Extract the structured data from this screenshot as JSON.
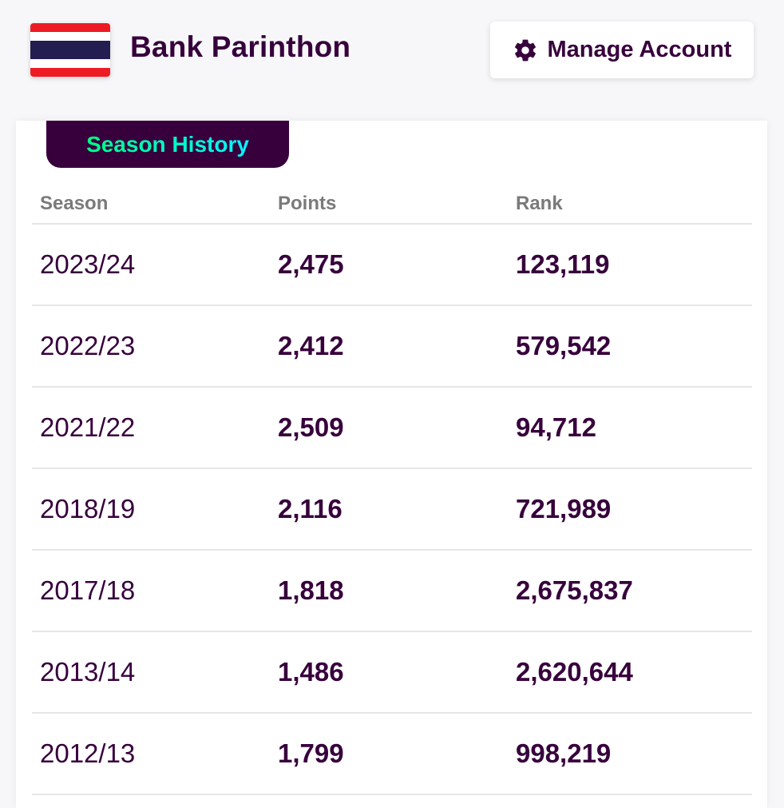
{
  "header": {
    "manager_name": "Bank Parinthon",
    "flag_icon": "thailand-flag-icon",
    "manage_button_label": "Manage Account",
    "manage_button_icon": "gear-icon"
  },
  "season_history": {
    "tab_label": "Season History",
    "columns": [
      "Season",
      "Points",
      "Rank"
    ],
    "rows": [
      {
        "season": "2023/24",
        "points": "2,475",
        "rank": "123,119"
      },
      {
        "season": "2022/23",
        "points": "2,412",
        "rank": "579,542"
      },
      {
        "season": "2021/22",
        "points": "2,509",
        "rank": "94,712"
      },
      {
        "season": "2018/19",
        "points": "2,116",
        "rank": "721,989"
      },
      {
        "season": "2017/18",
        "points": "1,818",
        "rank": "2,675,837"
      },
      {
        "season": "2013/14",
        "points": "1,486",
        "rank": "2,620,644"
      },
      {
        "season": "2012/13",
        "points": "1,799",
        "rank": "998,219"
      }
    ]
  },
  "colors": {
    "primary": "#37003c",
    "tab_gradient_start": "#00ff87",
    "tab_gradient_end": "#04f5ff",
    "header_text_muted": "#7a7a7a"
  }
}
